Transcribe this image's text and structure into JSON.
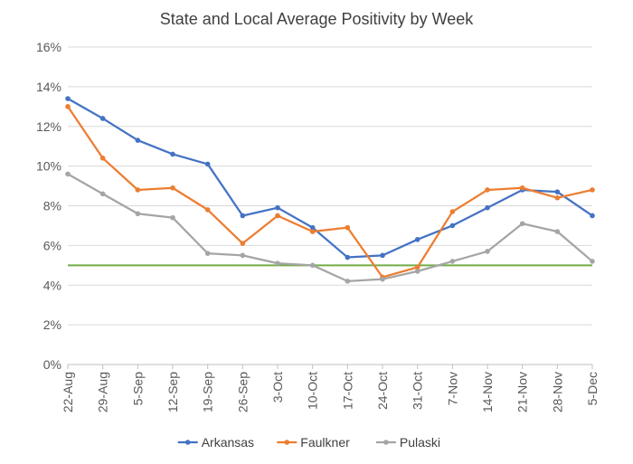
{
  "chart_data": {
    "type": "line",
    "title": "State and Local Average Positivity by Week",
    "xlabel": "",
    "ylabel": "",
    "categories": [
      "22-Aug",
      "29-Aug",
      "5-Sep",
      "12-Sep",
      "19-Sep",
      "26-Sep",
      "3-Oct",
      "10-Oct",
      "17-Oct",
      "24-Oct",
      "31-Oct",
      "7-Nov",
      "14-Nov",
      "21-Nov",
      "28-Nov",
      "5-Dec"
    ],
    "ylim": [
      0,
      16
    ],
    "yticks": [
      0,
      2,
      4,
      6,
      8,
      10,
      12,
      14,
      16
    ],
    "ytick_labels": [
      "0%",
      "2%",
      "4%",
      "6%",
      "8%",
      "10%",
      "12%",
      "14%",
      "16%"
    ],
    "grid": true,
    "legend_position": "bottom",
    "series": [
      {
        "name": "Arkansas",
        "color": "#4472C4",
        "values": [
          13.4,
          12.4,
          11.3,
          10.6,
          10.1,
          7.5,
          7.9,
          6.9,
          5.4,
          5.5,
          6.3,
          7.0,
          7.9,
          8.8,
          8.7,
          7.5
        ]
      },
      {
        "name": "Faulkner",
        "color": "#ED7D31",
        "values": [
          13.0,
          10.4,
          8.8,
          8.9,
          7.8,
          6.1,
          7.5,
          6.7,
          6.9,
          4.4,
          4.9,
          7.7,
          8.8,
          8.9,
          8.4,
          8.8
        ]
      },
      {
        "name": "Pulaski",
        "color": "#A5A5A5",
        "values": [
          9.6,
          8.6,
          7.6,
          7.4,
          5.6,
          5.5,
          5.1,
          5.0,
          4.2,
          4.3,
          4.7,
          5.2,
          5.7,
          7.1,
          6.7,
          5.2
        ]
      }
    ],
    "reference_line": {
      "value": 5.0,
      "color": "#70AD47"
    }
  }
}
